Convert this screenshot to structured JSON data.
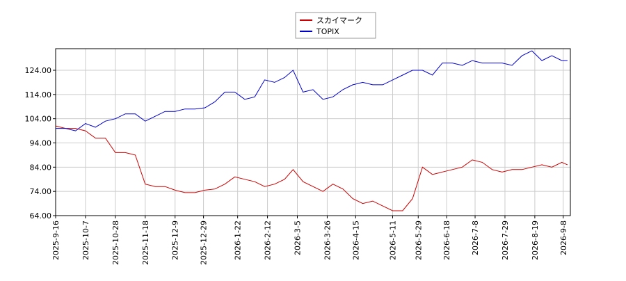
{
  "chart_data": {
    "type": "line",
    "x": [
      "2025-9-16",
      "2025-9-23",
      "2025-9-30",
      "2025-10-7",
      "2025-10-14",
      "2025-10-21",
      "2025-10-28",
      "2025-11-4",
      "2025-11-11",
      "2025-11-18",
      "2025-11-25",
      "2025-12-2",
      "2025-12-9",
      "2025-12-16",
      "2025-12-23",
      "2025-12-30",
      "2026-1-6",
      "2026-1-13",
      "2026-1-20",
      "2026-1-27",
      "2026-2-3",
      "2026-2-10",
      "2026-2-17",
      "2026-2-24",
      "2026-3-2",
      "2026-3-9",
      "2026-3-16",
      "2026-3-23",
      "2026-3-30",
      "2026-4-6",
      "2026-4-13",
      "2026-4-20",
      "2026-4-27",
      "2026-5-4",
      "2026-5-11",
      "2026-5-18",
      "2026-5-25",
      "2026-6-1",
      "2026-6-8",
      "2026-6-15",
      "2026-6-22",
      "2026-6-29",
      "2026-7-6",
      "2026-7-13",
      "2026-7-20",
      "2026-7-27",
      "2026-8-3",
      "2026-8-10",
      "2026-8-17",
      "2026-8-24",
      "2026-8-31",
      "2026-9-7",
      "2026-9-11"
    ],
    "series": [
      {
        "name": "スカイマーク",
        "color": "#cc0000",
        "values": [
          101,
          100,
          100,
          99,
          96,
          96,
          90,
          90,
          89,
          77,
          76,
          76,
          74.5,
          73.5,
          73.5,
          74.5,
          75,
          77,
          80,
          79,
          78,
          76,
          77,
          79,
          83,
          78,
          76,
          74,
          77,
          75,
          71,
          69,
          70,
          68,
          66,
          66,
          71,
          84,
          81,
          82,
          83,
          84,
          87,
          86,
          83,
          82,
          83,
          83,
          84,
          85,
          84,
          86,
          85
        ]
      },
      {
        "name": "TOPIX",
        "color": "#0000cc",
        "values": [
          100,
          100,
          99,
          102,
          100.5,
          103,
          104,
          106,
          106,
          103,
          105,
          107,
          107,
          108,
          108,
          108.5,
          111,
          115,
          115,
          112,
          113,
          120,
          119,
          121,
          124,
          115,
          116,
          112,
          113,
          116,
          118,
          119,
          118,
          118,
          120,
          122,
          124,
          124,
          122,
          127,
          127,
          126,
          128,
          127,
          127,
          127,
          126,
          130,
          132,
          128,
          130,
          128,
          128
        ]
      }
    ],
    "xlim": [
      "2025-9-16",
      "2026-9-13"
    ],
    "xticks": [
      "2025-9-16",
      "2025-10-7",
      "2025-10-28",
      "2025-11-18",
      "2025-12-9",
      "2025-12-29",
      "2026-1-22",
      "2026-2-12",
      "2026-3-5",
      "2026-3-26",
      "2026-4-15",
      "2026-5-11",
      "2026-5-29",
      "2026-6-18",
      "2026-7-8",
      "2026-7-29",
      "2026-8-19",
      "2026-9-8"
    ],
    "ylim": [
      64,
      132.9
    ],
    "yticks": [
      {
        "value": 64,
        "label": "64.00"
      },
      {
        "value": 74,
        "label": "74.00"
      },
      {
        "value": 84,
        "label": "84.00"
      },
      {
        "value": 94,
        "label": "94.00"
      },
      {
        "value": 104,
        "label": "104.00"
      },
      {
        "value": 114,
        "label": "114.00"
      },
      {
        "value": 124,
        "label": "124.00"
      }
    ],
    "grid": true,
    "legend": "top"
  }
}
